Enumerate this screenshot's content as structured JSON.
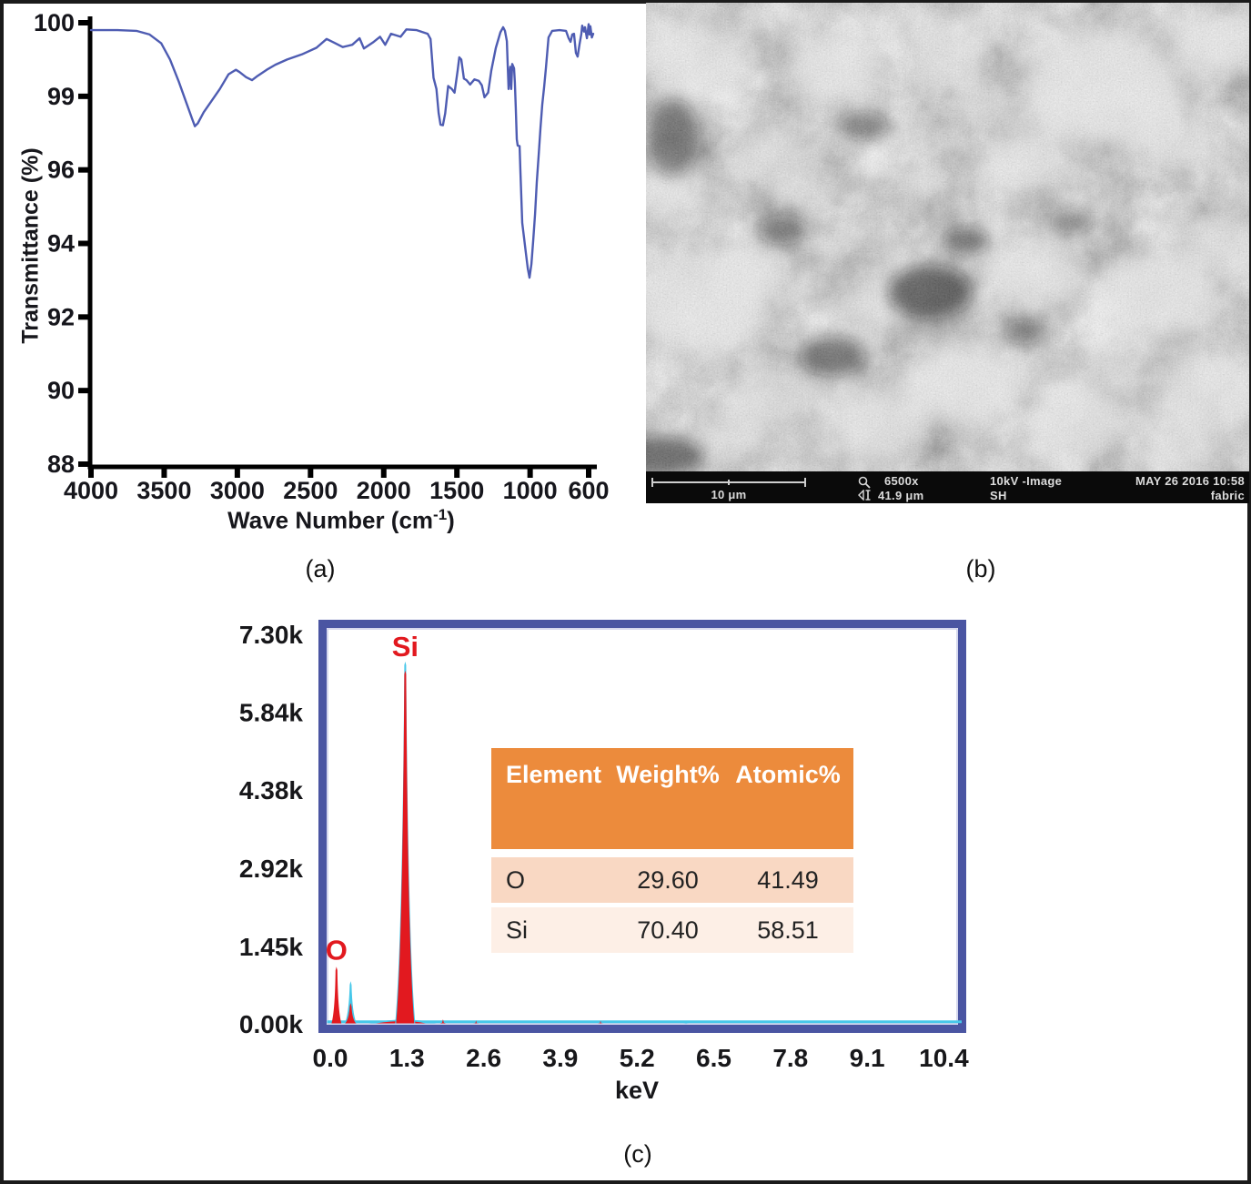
{
  "figure": {
    "panel_labels": {
      "a": "(a)",
      "b": "(b)",
      "c": "(c)"
    }
  },
  "chart_data": [
    {
      "id": "ftir",
      "type": "line",
      "panel": "a",
      "title": "",
      "xlabel_pre": "Wave Number (cm",
      "xlabel_sup": "-1",
      "xlabel_post": ")",
      "ylabel": "Transmittance (%)",
      "x_ticks": [
        4000,
        3500,
        3000,
        2500,
        2000,
        1500,
        1000,
        600
      ],
      "y_ticks": [
        100,
        99,
        96,
        94,
        92,
        90,
        88
      ],
      "x_range": [
        4000,
        600
      ],
      "grid": false,
      "line_color": "#4e5cb2",
      "axis_color": "#000000",
      "points": [
        [
          4000,
          99.9
        ],
        [
          3820,
          99.9
        ],
        [
          3690,
          99.89
        ],
        [
          3600,
          99.84
        ],
        [
          3520,
          99.72
        ],
        [
          3460,
          99.5
        ],
        [
          3400,
          99.2
        ],
        [
          3350,
          98.76
        ],
        [
          3310,
          98.1
        ],
        [
          3290,
          97.78
        ],
        [
          3270,
          97.9
        ],
        [
          3230,
          98.35
        ],
        [
          3180,
          98.78
        ],
        [
          3120,
          99.1
        ],
        [
          3060,
          99.3
        ],
        [
          3010,
          99.36
        ],
        [
          2985,
          99.33
        ],
        [
          2940,
          99.26
        ],
        [
          2900,
          99.22
        ],
        [
          2860,
          99.28
        ],
        [
          2800,
          99.36
        ],
        [
          2740,
          99.43
        ],
        [
          2660,
          99.5
        ],
        [
          2560,
          99.57
        ],
        [
          2460,
          99.66
        ],
        [
          2390,
          99.78
        ],
        [
          2340,
          99.73
        ],
        [
          2280,
          99.67
        ],
        [
          2215,
          99.7
        ],
        [
          2165,
          99.79
        ],
        [
          2135,
          99.65
        ],
        [
          2075,
          99.73
        ],
        [
          2025,
          99.81
        ],
        [
          1990,
          99.7
        ],
        [
          1950,
          99.85
        ],
        [
          1885,
          99.81
        ],
        [
          1845,
          99.91
        ],
        [
          1775,
          99.9
        ],
        [
          1700,
          99.85
        ],
        [
          1680,
          99.78
        ],
        [
          1660,
          99.25
        ],
        [
          1640,
          99.1
        ],
        [
          1625,
          98.32
        ],
        [
          1612,
          97.84
        ],
        [
          1596,
          97.82
        ],
        [
          1580,
          98.3
        ],
        [
          1560,
          99.14
        ],
        [
          1535,
          99.1
        ],
        [
          1516,
          99.05
        ],
        [
          1495,
          99.35
        ],
        [
          1484,
          99.53
        ],
        [
          1470,
          99.5
        ],
        [
          1452,
          99.24
        ],
        [
          1434,
          99.22
        ],
        [
          1410,
          99.16
        ],
        [
          1380,
          99.23
        ],
        [
          1350,
          99.21
        ],
        [
          1330,
          99.15
        ],
        [
          1312,
          98.96
        ],
        [
          1287,
          99.05
        ],
        [
          1265,
          99.35
        ],
        [
          1234,
          99.66
        ],
        [
          1203,
          99.87
        ],
        [
          1184,
          99.94
        ],
        [
          1172,
          99.89
        ],
        [
          1159,
          99.75
        ],
        [
          1153,
          99.44
        ],
        [
          1147,
          99.1
        ],
        [
          1135,
          99.4
        ],
        [
          1129,
          99.1
        ],
        [
          1122,
          99.44
        ],
        [
          1110,
          99.38
        ],
        [
          1104,
          99.19
        ],
        [
          1098,
          98.53
        ],
        [
          1091,
          97.25
        ],
        [
          1085,
          96.99
        ],
        [
          1072,
          96.97
        ],
        [
          1066,
          95.96
        ],
        [
          1054,
          94.56
        ],
        [
          1041,
          94.13
        ],
        [
          1029,
          93.74
        ],
        [
          1016,
          93.32
        ],
        [
          1004,
          93.07
        ],
        [
          991,
          93.44
        ],
        [
          979,
          94.06
        ],
        [
          966,
          94.8
        ],
        [
          954,
          95.67
        ],
        [
          941,
          96.62
        ],
        [
          929,
          97.73
        ],
        [
          917,
          98.66
        ],
        [
          904,
          99.13
        ],
        [
          892,
          99.38
        ],
        [
          874,
          99.8
        ],
        [
          849,
          99.89
        ],
        [
          799,
          99.9
        ],
        [
          755,
          99.89
        ],
        [
          737,
          99.79
        ],
        [
          724,
          99.74
        ],
        [
          712,
          99.84
        ],
        [
          700,
          99.85
        ],
        [
          687,
          99.59
        ],
        [
          675,
          99.54
        ],
        [
          662,
          99.71
        ],
        [
          650,
          99.85
        ],
        [
          644,
          99.96
        ],
        [
          631,
          99.88
        ],
        [
          625,
          99.94
        ],
        [
          612,
          99.79
        ],
        [
          600,
          99.98
        ],
        [
          594,
          99.84
        ],
        [
          588,
          99.95
        ],
        [
          578,
          99.8
        ],
        [
          569,
          99.85
        ]
      ]
    },
    {
      "id": "edx",
      "type": "area",
      "panel": "c",
      "xlabel": "keV",
      "x_ticks": [
        {
          "label": "0.0",
          "value": 0.0
        },
        {
          "label": "1.3",
          "value": 1.3
        },
        {
          "label": "2.6",
          "value": 2.6
        },
        {
          "label": "3.9",
          "value": 3.9
        },
        {
          "label": "5.2",
          "value": 5.2
        },
        {
          "label": "6.5",
          "value": 6.5
        },
        {
          "label": "7.8",
          "value": 7.8
        },
        {
          "label": "9.1",
          "value": 9.1
        },
        {
          "label": "10.4",
          "value": 10.4
        }
      ],
      "y_ticks": [
        {
          "label": "7.30k",
          "value": 7300
        },
        {
          "label": "5.84k",
          "value": 5840
        },
        {
          "label": "4.38k",
          "value": 4380
        },
        {
          "label": "2.92k",
          "value": 2920
        },
        {
          "label": "1.45k",
          "value": 1450
        },
        {
          "label": "0.00k",
          "value": 0
        }
      ],
      "xlim": [
        0,
        10.75
      ],
      "ylim": [
        0,
        7300
      ],
      "grid": false,
      "frame_color": "#4a55a2",
      "frame_inner_color": "#c9cce9",
      "series_colors": {
        "red": "#e2191f",
        "cyan": "#46c7e9"
      },
      "baseline_counts": 40,
      "peaks": [
        {
          "label": "O",
          "keV": 0.105,
          "counts": 1070,
          "counts_red": 1070,
          "halfwidth_keV": 0.092,
          "colors": [
            "red"
          ]
        },
        {
          "label": "",
          "keV": 0.345,
          "counts": 800,
          "counts_red": 390,
          "halfwidth_keV": 0.1,
          "colors": [
            "cyan",
            "red"
          ]
        },
        {
          "label": "Si",
          "keV": 1.27,
          "counts": 6790,
          "counts_red": 6620,
          "halfwidth_keV": 0.17,
          "colors": [
            "cyan",
            "red"
          ]
        }
      ],
      "base_hump": {
        "keV_start": 0.65,
        "keV_peak": 1.28,
        "keV_end": 1.8,
        "counts_cyan": 150,
        "counts_red": 95
      },
      "minor_blips": [
        {
          "keV": 1.91,
          "counts": 85,
          "color": "red"
        },
        {
          "keV": 2.47,
          "counts": 65,
          "color": "red"
        },
        {
          "keV": 4.58,
          "counts": 60,
          "color": "red"
        },
        {
          "keV": 6.03,
          "counts": 55,
          "color": "cyan"
        }
      ],
      "annotation_color": "#e2191f"
    }
  ],
  "edx_table": {
    "headers": [
      "Element",
      "Weight%",
      "Atomic%"
    ],
    "rows": [
      [
        "O",
        "29.60",
        "41.49"
      ],
      [
        "Si",
        "70.40",
        "58.51"
      ]
    ],
    "header_bg": "#ec8b3c",
    "row_bgs": [
      "#f9d8c3",
      "#fdefe6"
    ]
  },
  "sem": {
    "scalebar_label": "10 μm",
    "magnification": "6500x",
    "beam": "10kV -Image",
    "datetime": "MAY 26 2016 10:58",
    "field_width": "41.9 μm",
    "detector": "SH",
    "sample": "fabric"
  }
}
